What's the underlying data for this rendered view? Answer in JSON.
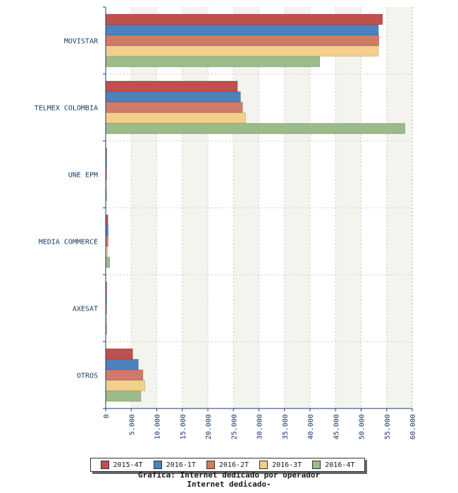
{
  "chart_data": {
    "type": "bar",
    "orientation": "horizontal",
    "categories": [
      "MOVISTAR",
      "TELMEX COLOMBIA",
      "UNE EPM",
      "MEDIA COMMERCE",
      "AXESAT",
      "OTROS"
    ],
    "series": [
      {
        "name": "2015-4T",
        "color": "#c0504d",
        "values": [
          54200,
          25800,
          180,
          450,
          180,
          5300
        ]
      },
      {
        "name": "2016-1T",
        "color": "#4f81bd",
        "values": [
          53400,
          26400,
          200,
          500,
          200,
          6400
        ]
      },
      {
        "name": "2016-2T",
        "color": "#d07b68",
        "values": [
          53500,
          26800,
          190,
          480,
          190,
          7300
        ]
      },
      {
        "name": "2016-3T",
        "color": "#f2cf8a",
        "values": [
          53400,
          27400,
          170,
          420,
          170,
          7700
        ]
      },
      {
        "name": "2016-4T",
        "color": "#9bbb8a",
        "values": [
          41900,
          58600,
          150,
          800,
          150,
          6900
        ]
      }
    ],
    "xlim": [
      0,
      60000
    ],
    "x_ticks": [
      "0",
      "5.000",
      "10.000",
      "15.000",
      "20.000",
      "25.000",
      "30.000",
      "35.000",
      "40.000",
      "45.000",
      "50.000",
      "55.000",
      "60.000"
    ],
    "grid": true,
    "legend_position": "bottom"
  },
  "captions": {
    "line1": "Gráfica: Internet dedicado por operador",
    "line2": "Internet dedicado-"
  }
}
